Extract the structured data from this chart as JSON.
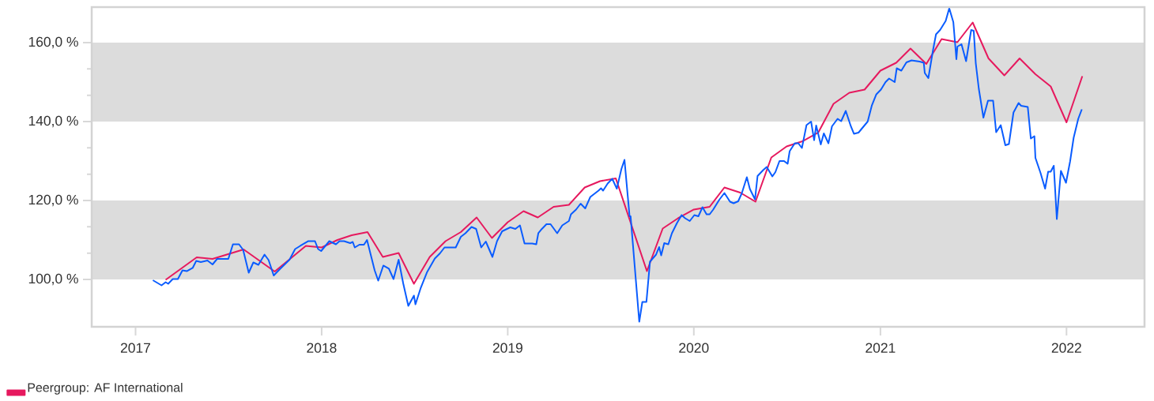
{
  "chart_data": {
    "type": "line",
    "xlim": [
      "2016-10-07",
      "2022-06-03"
    ],
    "ylim": [
      88,
      169
    ],
    "xticks": [
      {
        "value": "2017-01-01",
        "label": "2017"
      },
      {
        "value": "2018-01-01",
        "label": "2018"
      },
      {
        "value": "2019-01-01",
        "label": "2019"
      },
      {
        "value": "2020-01-01",
        "label": "2020"
      },
      {
        "value": "2021-01-01",
        "label": "2021"
      },
      {
        "value": "2022-01-01",
        "label": "2022"
      }
    ],
    "yticks": [
      {
        "value": 100,
        "label": "100,0 %"
      },
      {
        "value": 120,
        "label": "120,0 %"
      },
      {
        "value": 140,
        "label": "140,0 %"
      },
      {
        "value": 160,
        "label": "160,0 %"
      }
    ],
    "bands": [
      {
        "axis": "y",
        "from": 100,
        "to": 120,
        "color": "#dcdcdc"
      },
      {
        "axis": "y",
        "from": 140,
        "to": 160,
        "color": "#dcdcdc"
      }
    ],
    "legend": "bottom",
    "line_style": "solid",
    "series": [
      {
        "name": "Peergroup: AF International",
        "color": "#e6195e",
        "x": [
          "2017-03",
          "2017-05",
          "2017-06",
          "2017-08",
          "2017-10",
          "2017-12",
          "2018-01",
          "2018-02",
          "2018-03",
          "2018-04",
          "2018-05",
          "2018-06",
          "2018-07",
          "2018-08",
          "2018-09",
          "2018-10",
          "2018-11",
          "2018-12",
          "2019-01",
          "2019-02",
          "2019-03",
          "2019-04",
          "2019-05",
          "2019-06",
          "2019-07",
          "2019-08",
          "2019-10",
          "2019-11",
          "2019-12",
          "2020-01",
          "2020-02",
          "2020-03",
          "2020-04",
          "2020-05",
          "2020-06",
          "2020-07",
          "2020-08",
          "2020-09",
          "2020-10",
          "2020-11",
          "2020-12",
          "2021-01",
          "2021-02",
          "2021-03",
          "2021-04",
          "2021-05",
          "2021-06",
          "2021-07",
          "2021-08",
          "2021-09",
          "2021-10",
          "2021-11",
          "2021-12",
          "2022-01",
          "2022-02"
        ],
        "values": [
          99.9,
          105.6,
          105.2,
          107.6,
          102.0,
          108.5,
          108.1,
          110.0,
          111.2,
          112.0,
          105.7,
          106.7,
          98.9,
          105.7,
          109.7,
          112.0,
          115.7,
          110.5,
          114.5,
          117.3,
          115.7,
          118.4,
          118.9,
          123.3,
          124.9,
          125.6,
          102.1,
          112.9,
          115.5,
          117.7,
          118.4,
          123.3,
          122.0,
          119.7,
          130.9,
          133.7,
          135.0,
          137.2,
          144.5,
          147.3,
          148.1,
          152.9,
          154.9,
          158.5,
          154.6,
          160.9,
          160.1,
          165.1,
          156.0,
          151.7,
          156.0,
          152.0,
          148.9,
          139.8,
          151.5
        ]
      },
      {
        "color": "#0a5cff",
        "x": [
          "2017-02-04",
          "2017-02-21",
          "2017-03-01",
          "2017-03-06",
          "2017-03-15",
          "2017-03-25",
          "2017-04-03",
          "2017-04-12",
          "2017-04-23",
          "2017-04-30",
          "2017-05-09",
          "2017-05-22",
          "2017-06-01",
          "2017-06-10",
          "2017-07-02",
          "2017-07-11",
          "2017-07-23",
          "2017-07-31",
          "2017-08-11",
          "2017-08-20",
          "2017-08-30",
          "2017-09-11",
          "2017-09-19",
          "2017-09-29",
          "2017-10-11",
          "2017-10-30",
          "2017-11-10",
          "2017-11-20",
          "2017-12-06",
          "2017-12-19",
          "2017-12-25",
          "2017-12-31",
          "2018-01-16",
          "2018-01-29",
          "2018-02-05",
          "2018-02-14",
          "2018-02-26",
          "2018-03-03",
          "2018-03-07",
          "2018-03-16",
          "2018-03-25",
          "2018-03-31",
          "2018-04-15",
          "2018-04-22",
          "2018-05-02",
          "2018-05-13",
          "2018-05-22",
          "2018-06-01",
          "2018-06-10",
          "2018-06-20",
          "2018-07-01",
          "2018-07-04",
          "2018-07-14",
          "2018-07-27",
          "2018-08-11",
          "2018-08-21",
          "2018-08-30",
          "2018-09-21",
          "2018-10-01",
          "2018-10-10",
          "2018-10-22",
          "2018-10-31",
          "2018-11-10",
          "2018-11-19",
          "2018-12-02",
          "2018-12-11",
          "2018-12-21",
          "2019-01-06",
          "2019-01-16",
          "2019-01-25",
          "2019-02-03",
          "2019-02-18",
          "2019-02-26",
          "2019-03-02",
          "2019-03-09",
          "2019-03-18",
          "2019-03-26",
          "2019-04-08",
          "2019-04-18",
          "2019-05-01",
          "2019-05-05",
          "2019-05-15",
          "2019-05-24",
          "2019-06-02",
          "2019-06-12",
          "2019-06-28",
          "2019-07-03",
          "2019-07-07",
          "2019-07-16",
          "2019-07-25",
          "2019-08-03",
          "2019-08-12",
          "2019-08-18",
          "2019-08-28",
          "2019-08-30",
          "2019-09-16",
          "2019-09-22",
          "2019-09-30",
          "2019-10-07",
          "2019-10-19",
          "2019-10-25",
          "2019-10-29",
          "2019-11-04",
          "2019-11-12",
          "2019-11-19",
          "2019-11-29",
          "2019-12-08",
          "2019-12-15",
          "2019-12-24",
          "2020-01-02",
          "2020-01-10",
          "2020-01-18",
          "2020-01-26",
          "2020-02-01",
          "2020-02-08",
          "2020-02-20",
          "2020-03-01",
          "2020-03-12",
          "2020-03-19",
          "2020-03-28",
          "2020-04-04",
          "2020-04-14",
          "2020-04-20",
          "2020-04-30",
          "2020-05-05",
          "2020-05-16",
          "2020-05-23",
          "2020-06-03",
          "2020-06-09",
          "2020-06-17",
          "2020-06-26",
          "2020-07-03",
          "2020-07-07",
          "2020-07-17",
          "2020-07-24",
          "2020-07-31",
          "2020-08-09",
          "2020-08-18",
          "2020-08-24",
          "2020-08-28",
          "2020-09-06",
          "2020-09-12",
          "2020-09-21",
          "2020-09-28",
          "2020-10-09",
          "2020-10-16",
          "2020-10-25",
          "2020-11-04",
          "2020-11-10",
          "2020-11-19",
          "2020-12-07",
          "2020-12-15",
          "2020-12-24",
          "2021-01-02",
          "2021-01-11",
          "2021-01-18",
          "2021-01-29",
          "2021-02-02",
          "2021-02-11",
          "2021-02-21",
          "2021-03-03",
          "2021-03-19",
          "2021-03-27",
          "2021-03-29",
          "2021-04-05",
          "2021-04-14",
          "2021-04-20",
          "2021-04-28",
          "2021-05-09",
          "2021-05-16",
          "2021-05-24",
          "2021-05-30",
          "2021-06-01",
          "2021-06-09",
          "2021-06-18",
          "2021-06-28",
          "2021-07-03",
          "2021-07-07",
          "2021-07-13",
          "2021-07-22",
          "2021-07-31",
          "2021-08-10",
          "2021-08-16",
          "2021-08-25",
          "2021-09-03",
          "2021-09-10",
          "2021-09-19",
          "2021-09-29",
          "2021-10-04",
          "2021-10-17",
          "2021-10-23",
          "2021-10-30",
          "2021-11-01",
          "2021-11-11",
          "2021-11-20",
          "2021-11-26",
          "2021-12-01",
          "2021-12-07",
          "2021-12-13",
          "2021-12-21",
          "2021-12-31",
          "2022-01-08",
          "2022-01-15",
          "2022-01-24",
          "2022-01-31"
        ],
        "values": [
          99.8,
          98.5,
          99.3,
          98.9,
          100.1,
          100.1,
          102.3,
          102.1,
          102.9,
          104.7,
          104.4,
          104.8,
          103.8,
          105.2,
          105.2,
          108.9,
          108.9,
          107.5,
          101.7,
          104.3,
          103.7,
          106.3,
          104.9,
          101.0,
          102.6,
          105.0,
          107.7,
          108.5,
          109.7,
          109.7,
          107.7,
          107.2,
          109.7,
          108.9,
          109.7,
          109.7,
          109.2,
          109.5,
          108.1,
          108.8,
          108.8,
          110.0,
          102.3,
          99.7,
          103.5,
          102.7,
          100.1,
          105.0,
          99.0,
          93.3,
          95.9,
          93.7,
          97.7,
          101.9,
          105.3,
          106.6,
          108.1,
          108.1,
          110.8,
          111.7,
          113.3,
          112.8,
          108.1,
          109.6,
          105.7,
          109.7,
          112.2,
          113.2,
          112.8,
          113.7,
          109.1,
          109.1,
          108.9,
          111.7,
          112.8,
          114.0,
          114.0,
          111.7,
          113.7,
          114.8,
          116.5,
          117.7,
          119.2,
          118.0,
          120.9,
          122.5,
          123.1,
          122.5,
          124.3,
          125.5,
          123.0,
          128.0,
          130.3,
          116.0,
          116.0,
          89.3,
          94.3,
          94.3,
          104.5,
          106.3,
          108.2,
          106.1,
          109.2,
          108.9,
          111.7,
          114.3,
          116.3,
          115.5,
          114.8,
          116.3,
          116.0,
          118.3,
          116.5,
          116.5,
          117.7,
          120.2,
          121.9,
          119.7,
          119.3,
          119.8,
          121.8,
          125.9,
          122.9,
          120.3,
          126.2,
          127.7,
          128.5,
          126.1,
          127.2,
          130.0,
          130.0,
          129.3,
          132.5,
          134.5,
          134.5,
          133.3,
          139.1,
          140.0,
          135.3,
          139.0,
          134.2,
          137.0,
          134.5,
          138.8,
          140.7,
          140.1,
          142.7,
          138.8,
          136.9,
          137.2,
          140.0,
          144.0,
          146.9,
          148.1,
          150.0,
          150.9,
          150.0,
          153.5,
          152.9,
          155.0,
          155.5,
          155.2,
          154.9,
          152.3,
          151.0,
          158.0,
          162.1,
          163.2,
          165.5,
          168.7,
          165.2,
          155.8,
          159.0,
          159.6,
          155.3,
          163.2,
          163.0,
          154.8,
          148.3,
          141.0,
          145.3,
          145.3,
          137.3,
          139.1,
          134.0,
          134.3,
          142.3,
          144.7,
          144.0,
          143.7,
          135.7,
          136.3,
          130.8,
          127.0,
          123.0,
          127.3,
          127.3,
          128.8,
          115.3,
          127.5,
          124.5,
          129.9,
          135.9,
          140.7,
          143.1
        ]
      }
    ]
  }
}
